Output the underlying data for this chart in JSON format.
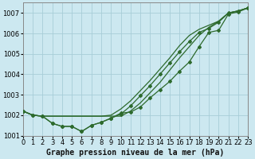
{
  "title": "Graphe pression niveau de la mer (hPa)",
  "bg_color": "#cce8f0",
  "grid_color": "#a8cdd8",
  "line_color": "#2d6a2d",
  "xlim": [
    0,
    23
  ],
  "ylim": [
    1001.0,
    1007.5
  ],
  "xticks": [
    0,
    1,
    2,
    3,
    4,
    5,
    6,
    7,
    8,
    9,
    10,
    11,
    12,
    13,
    14,
    15,
    16,
    17,
    18,
    19,
    20,
    21,
    22,
    23
  ],
  "yticks": [
    1001,
    1002,
    1003,
    1004,
    1005,
    1006,
    1007
  ],
  "series": [
    {
      "y": [
        1002.2,
        1002.0,
        1001.95,
        1001.95,
        1001.95,
        1001.95,
        1001.95,
        1001.95,
        1001.95,
        1001.95,
        1001.95,
        1002.2,
        1002.6,
        1003.1,
        1003.6,
        1004.2,
        1004.8,
        1005.35,
        1005.9,
        1006.3,
        1006.6,
        1007.0,
        1007.1,
        1007.25
      ],
      "marker": false
    },
    {
      "y": [
        1002.2,
        1002.0,
        1001.95,
        1001.95,
        1001.95,
        1001.95,
        1001.95,
        1001.95,
        1001.95,
        1002.0,
        1002.3,
        1002.7,
        1003.2,
        1003.7,
        1004.25,
        1004.8,
        1005.4,
        1005.9,
        1006.2,
        1006.4,
        1006.6,
        1007.0,
        1007.1,
        1007.25
      ],
      "marker": false
    },
    {
      "y": [
        1002.2,
        1002.0,
        1001.95,
        1001.6,
        1001.45,
        1001.45,
        1001.2,
        1001.5,
        1001.65,
        1001.85,
        1002.05,
        1002.45,
        1002.95,
        1003.45,
        1004.0,
        1004.55,
        1005.1,
        1005.6,
        1006.05,
        1006.25,
        1006.55,
        1007.0,
        1007.1,
        1007.25
      ],
      "marker": true
    },
    {
      "y": [
        1002.2,
        1002.0,
        1001.95,
        1001.6,
        1001.45,
        1001.45,
        1001.2,
        1001.5,
        1001.65,
        1001.85,
        1002.1,
        1002.15,
        1002.4,
        1002.85,
        1003.25,
        1003.65,
        1004.15,
        1004.6,
        1005.35,
        1006.05,
        1006.15,
        1006.95,
        1007.05,
        1007.25
      ],
      "marker": true
    }
  ],
  "xlabel_fontsize": 7.0,
  "tick_fontsize": 6.0
}
